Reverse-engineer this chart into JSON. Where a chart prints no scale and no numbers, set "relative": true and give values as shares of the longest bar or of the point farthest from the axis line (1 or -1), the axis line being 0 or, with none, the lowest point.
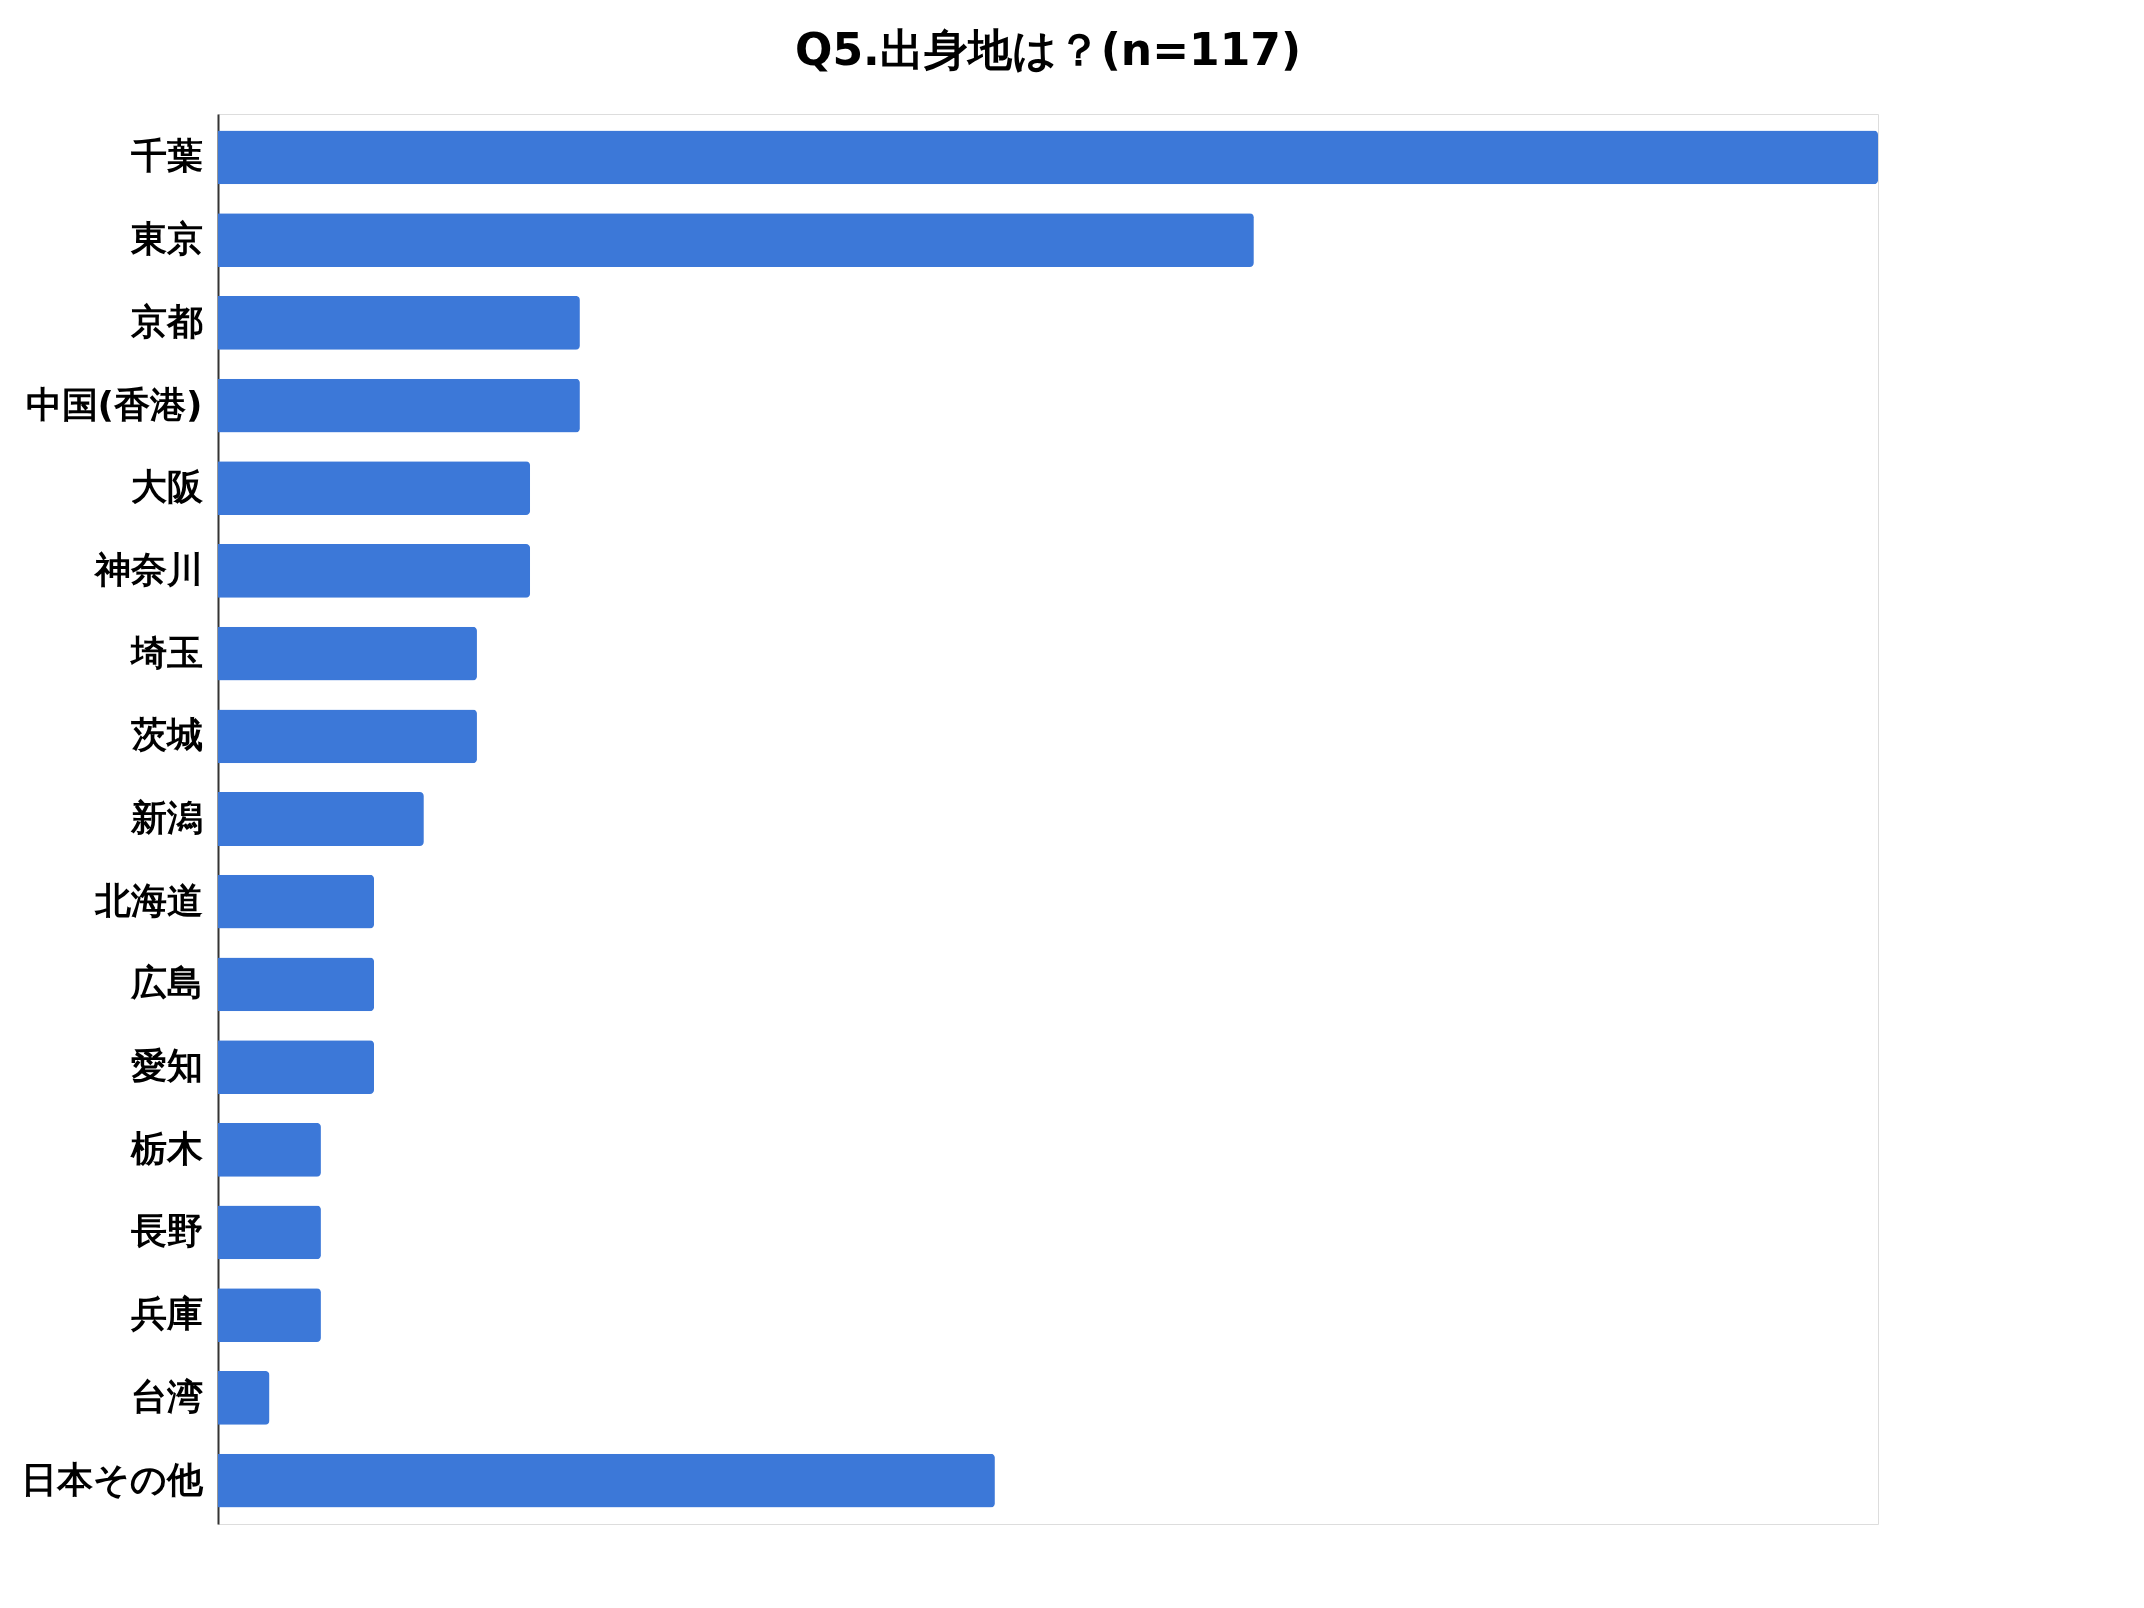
{
  "chart_data": {
    "type": "bar",
    "orientation": "horizontal",
    "relative": true,
    "title": "Q5.出身地は？(n=117)",
    "categories": [
      "千葉",
      "東京",
      "京都",
      "中国(香港)",
      "大阪",
      "神奈川",
      "埼玉",
      "茨城",
      "新潟",
      "北海道",
      "広島",
      "愛知",
      "栃木",
      "長野",
      "兵庫",
      "台湾",
      "日本その他"
    ],
    "values": [
      1,
      0.624,
      0.218,
      0.218,
      0.188,
      0.188,
      0.156,
      0.156,
      0.124,
      0.094,
      0.094,
      0.094,
      0.062,
      0.062,
      0.062,
      0.031,
      0.468
    ],
    "color": "#3c78d8"
  }
}
